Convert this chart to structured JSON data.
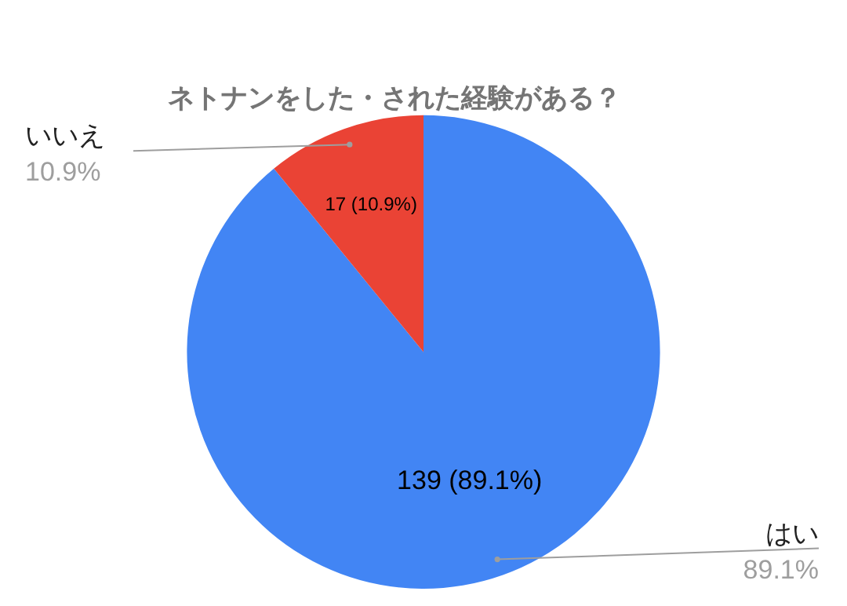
{
  "chart_data": {
    "type": "pie",
    "title": "ネトナンをした・された経験がある？",
    "categories": [
      "はい",
      "いいえ"
    ],
    "values": [
      139,
      17
    ],
    "colors": [
      "#4285f4",
      "#ea4335"
    ],
    "value_labels": [
      "139 (89.1%)",
      "17 (10.9%)"
    ],
    "annotations": [
      "89.1%",
      "10.9%"
    ],
    "legend": false
  }
}
